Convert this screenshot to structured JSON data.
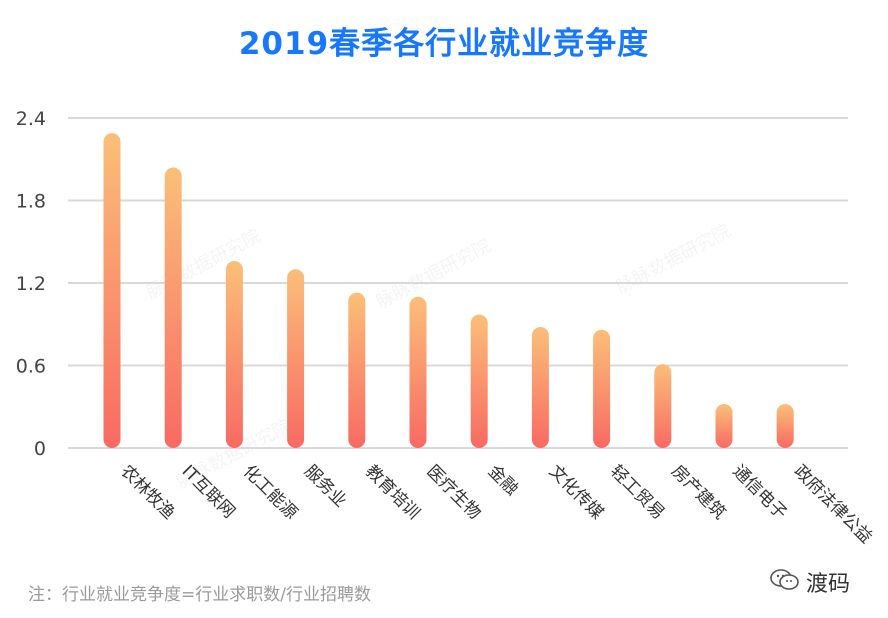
{
  "chart_data": {
    "type": "bar",
    "title": "2019春季各行业就业竞争度",
    "categories": [
      "农林牧渔",
      "IT互联网",
      "化工能源",
      "服务业",
      "教育培训",
      "医疗生物",
      "金融",
      "文化传媒",
      "轻工贸易",
      "房产建筑",
      "通信电子",
      "政府法律公益"
    ],
    "values": [
      2.29,
      2.04,
      1.36,
      1.3,
      1.13,
      1.1,
      0.97,
      0.88,
      0.86,
      0.61,
      0.32,
      0.32
    ],
    "yticks": [
      "0",
      "0.6",
      "1.2",
      "1.8",
      "2.4"
    ],
    "ylim": [
      0,
      2.4
    ],
    "grid": true,
    "colors": {
      "bar_top": "#fbbf79",
      "bar_bottom": "#f86a63",
      "title": "#1677ff"
    }
  },
  "footnote": "注：行业就业竞争度=行业求职数/行业招聘数",
  "brand": {
    "name": "渡码",
    "icon": "wechat-icon"
  },
  "watermarks": [
    "脉脉数据研究院",
    "脉脉数据研究院",
    "脉脉数据研究院",
    "脉脉数据研究院"
  ]
}
